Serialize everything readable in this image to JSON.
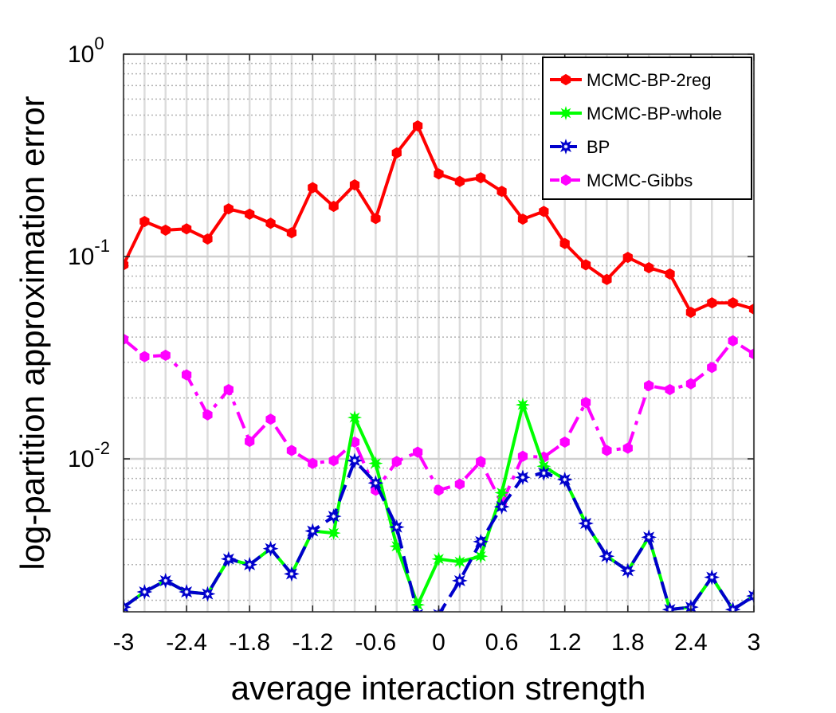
{
  "chart_data": {
    "type": "line",
    "title": "",
    "xlabel": "average interaction strength",
    "ylabel": "log-partition approximation error",
    "xlim": [
      -3,
      3
    ],
    "ylim": [
      0.0017,
      1
    ],
    "yscale": "log",
    "grid": true,
    "legend_position": "top-right",
    "x_ticks": [
      -3,
      -2.4,
      -1.8,
      -1.2,
      -0.6,
      0,
      0.6,
      1.2,
      1.8,
      2.4,
      3
    ],
    "x_tick_labels": [
      "-3",
      "-2.4",
      "-1.8",
      "-1.2",
      "-0.6",
      "0",
      "0.6",
      "1.2",
      "1.8",
      "2.4",
      "3"
    ],
    "y_ticks": [
      {
        "value": 1,
        "base": "10",
        "exp": "0"
      },
      {
        "value": 0.1,
        "base": "10",
        "exp": "-1"
      },
      {
        "value": 0.01,
        "base": "10",
        "exp": "-2"
      }
    ],
    "x": [
      -3,
      -2.8,
      -2.6,
      -2.4,
      -2.2,
      -2,
      -1.8,
      -1.6,
      -1.4,
      -1.2,
      -1,
      -0.8,
      -0.6,
      -0.4,
      -0.2,
      0,
      0.2,
      0.4,
      0.6,
      0.8,
      1,
      1.2,
      1.4,
      1.6,
      1.8,
      2,
      2.2,
      2.4,
      2.6,
      2.8,
      3
    ],
    "series": [
      {
        "name": "MCMC-BP-2reg",
        "color": "#ff0000",
        "dash": "solid",
        "values": [
          0.091,
          0.149,
          0.135,
          0.137,
          0.122,
          0.172,
          0.162,
          0.146,
          0.131,
          0.219,
          0.177,
          0.226,
          0.154,
          0.325,
          0.442,
          0.256,
          0.235,
          0.245,
          0.21,
          0.153,
          0.167,
          0.116,
          0.091,
          0.077,
          0.099,
          0.088,
          0.082,
          0.053,
          0.059,
          0.059,
          0.055
        ]
      },
      {
        "name": "MCMC-BP-whole",
        "color": "#00ff00",
        "dash": "solid",
        "values": [
          0.00185,
          0.0022,
          0.0025,
          0.0022,
          0.00215,
          0.0032,
          0.003,
          0.0036,
          0.0027,
          0.0044,
          0.0043,
          0.016,
          0.0095,
          0.0037,
          0.0019,
          0.0032,
          0.0031,
          0.0033,
          0.0068,
          0.0185,
          0.0092,
          0.0079,
          0.0048,
          0.0033,
          0.0028,
          0.0041,
          0.0018,
          0.00185,
          0.0026,
          0.0018,
          0.0021
        ]
      },
      {
        "name": "BP",
        "color": "#0000cc",
        "dash": "dashed",
        "values": [
          0.00185,
          0.0022,
          0.0025,
          0.0022,
          0.00215,
          0.0032,
          0.003,
          0.0036,
          0.0027,
          0.0044,
          0.0052,
          0.0098,
          0.0076,
          0.0046,
          0.0017,
          0.0017,
          0.0025,
          0.0039,
          0.0058,
          0.0081,
          0.0085,
          0.0079,
          0.0048,
          0.0033,
          0.0028,
          0.0041,
          0.0018,
          0.00185,
          0.0026,
          0.0018,
          0.0021
        ]
      },
      {
        "name": "MCMC-Gibbs",
        "color": "#ff00ff",
        "dash": "dashdot",
        "values": [
          0.039,
          0.032,
          0.0325,
          0.026,
          0.0165,
          0.022,
          0.0122,
          0.0157,
          0.011,
          0.0095,
          0.0098,
          0.0121,
          0.007,
          0.0097,
          0.0108,
          0.007,
          0.0075,
          0.0097,
          0.006,
          0.0103,
          0.0102,
          0.0121,
          0.019,
          0.011,
          0.0113,
          0.023,
          0.022,
          0.0235,
          0.0283,
          0.0383,
          0.033
        ]
      }
    ]
  }
}
